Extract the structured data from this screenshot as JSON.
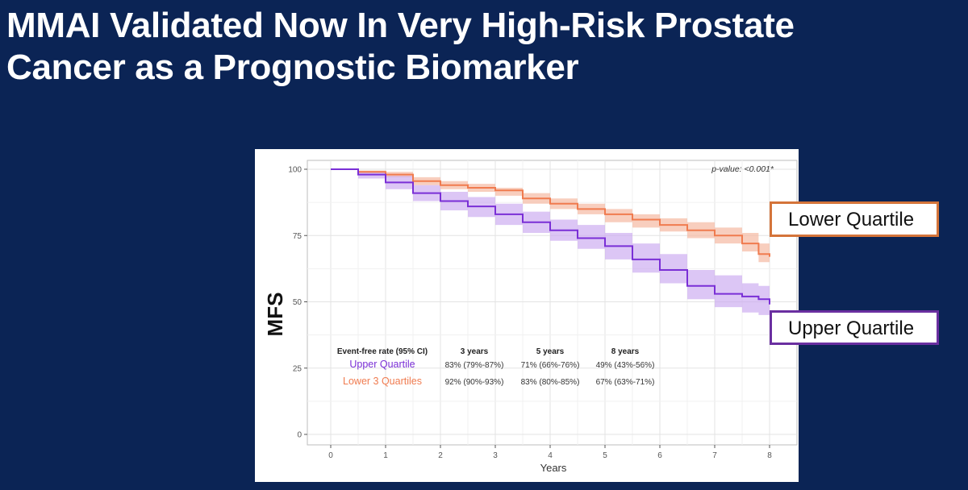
{
  "slide": {
    "title_line1": "MMAI Validated Now In Very High-Risk Prostate",
    "title_line2": "Cancer as a Prognostic Biomarker"
  },
  "callouts": {
    "lower": "Lower Quartile",
    "upper": "Upper Quartile"
  },
  "colors": {
    "background": "#0b2455",
    "lower_series": "#f07b4f",
    "lower_band": "#f5b9a3",
    "upper_series": "#7a2fd6",
    "upper_band": "#c9a8f0",
    "callout_lower_border": "#d4743a",
    "callout_upper_border": "#6a2fa0"
  },
  "chart_data": {
    "type": "line",
    "xlabel": "Years",
    "ylabel": "MFS",
    "xlim": [
      0,
      8
    ],
    "ylim": [
      0,
      100
    ],
    "x_ticks": [
      "0",
      "1",
      "2",
      "3",
      "4",
      "5",
      "6",
      "7",
      "8"
    ],
    "y_ticks": [
      "0",
      "25",
      "50",
      "75",
      "100"
    ],
    "grid": true,
    "annotation": "p-value: <0.001*",
    "series": [
      {
        "key": "lower",
        "name": "Lower 3 Quartiles",
        "points": [
          [
            0,
            100
          ],
          [
            0.5,
            99
          ],
          [
            1,
            98
          ],
          [
            1.5,
            95.5
          ],
          [
            2,
            94
          ],
          [
            2.5,
            93
          ],
          [
            3,
            92
          ],
          [
            3.5,
            89
          ],
          [
            4,
            87
          ],
          [
            4.5,
            85
          ],
          [
            5,
            83
          ],
          [
            5.5,
            81
          ],
          [
            6,
            79
          ],
          [
            6.5,
            77
          ],
          [
            7,
            75
          ],
          [
            7.5,
            72
          ],
          [
            7.8,
            68
          ],
          [
            8,
            67
          ]
        ],
        "upper": [
          [
            0,
            100
          ],
          [
            0.5,
            99.5
          ],
          [
            1,
            99
          ],
          [
            1.5,
            97
          ],
          [
            2,
            95.5
          ],
          [
            2.5,
            94.5
          ],
          [
            3,
            93
          ],
          [
            3.5,
            91
          ],
          [
            4,
            89
          ],
          [
            4.5,
            87
          ],
          [
            5,
            85
          ],
          [
            5.5,
            83
          ],
          [
            6,
            81.5
          ],
          [
            6.5,
            80
          ],
          [
            7,
            78
          ],
          [
            7.5,
            76
          ],
          [
            7.8,
            72
          ],
          [
            8,
            71
          ]
        ],
        "lower": [
          [
            0,
            100
          ],
          [
            0.5,
            98.5
          ],
          [
            1,
            97
          ],
          [
            1.5,
            94
          ],
          [
            2,
            92.5
          ],
          [
            2.5,
            91.5
          ],
          [
            3,
            90
          ],
          [
            3.5,
            87
          ],
          [
            4,
            85
          ],
          [
            4.5,
            83
          ],
          [
            5,
            80
          ],
          [
            5.5,
            78
          ],
          [
            6,
            76.5
          ],
          [
            6.5,
            74
          ],
          [
            7,
            72
          ],
          [
            7.5,
            69
          ],
          [
            7.8,
            65
          ],
          [
            8,
            63
          ]
        ]
      },
      {
        "key": "upper",
        "name": "Upper Quartile",
        "points": [
          [
            0,
            100
          ],
          [
            0.5,
            98
          ],
          [
            1,
            95
          ],
          [
            1.5,
            91
          ],
          [
            2,
            88
          ],
          [
            2.5,
            86
          ],
          [
            3,
            83
          ],
          [
            3.5,
            80
          ],
          [
            4,
            77
          ],
          [
            4.5,
            74
          ],
          [
            5,
            71
          ],
          [
            5.5,
            66
          ],
          [
            6,
            62
          ],
          [
            6.5,
            56
          ],
          [
            7,
            53
          ],
          [
            7.5,
            52
          ],
          [
            7.8,
            51
          ],
          [
            8,
            49
          ]
        ],
        "upper": [
          [
            0,
            100
          ],
          [
            0.5,
            99
          ],
          [
            1,
            97.5
          ],
          [
            1.5,
            94
          ],
          [
            2,
            91.5
          ],
          [
            2.5,
            89.5
          ],
          [
            3,
            87
          ],
          [
            3.5,
            84
          ],
          [
            4,
            81
          ],
          [
            4.5,
            79
          ],
          [
            5,
            76
          ],
          [
            5.5,
            72
          ],
          [
            6,
            68
          ],
          [
            6.5,
            62
          ],
          [
            7,
            60
          ],
          [
            7.5,
            57
          ],
          [
            7.8,
            56
          ],
          [
            8,
            56
          ]
        ],
        "lower": [
          [
            0,
            100
          ],
          [
            0.5,
            96.5
          ],
          [
            1,
            92.5
          ],
          [
            1.5,
            88
          ],
          [
            2,
            84.5
          ],
          [
            2.5,
            82
          ],
          [
            3,
            79
          ],
          [
            3.5,
            76
          ],
          [
            4,
            73
          ],
          [
            4.5,
            70
          ],
          [
            5,
            66
          ],
          [
            5.5,
            61
          ],
          [
            6,
            57
          ],
          [
            6.5,
            51
          ],
          [
            7,
            48
          ],
          [
            7.5,
            46
          ],
          [
            7.8,
            45
          ],
          [
            8,
            43
          ]
        ]
      }
    ],
    "table": {
      "header": [
        "Event-free rate (95% CI)",
        "3 years",
        "5 years",
        "8 years"
      ],
      "rows": [
        {
          "label": "Upper Quartile",
          "cells": [
            "83% (79%-87%)",
            "71% (66%-76%)",
            "49% (43%-56%)"
          ]
        },
        {
          "label": "Lower 3 Quartiles",
          "cells": [
            "92% (90%-93%)",
            "83% (80%-85%)",
            "67% (63%-71%)"
          ]
        }
      ]
    }
  }
}
